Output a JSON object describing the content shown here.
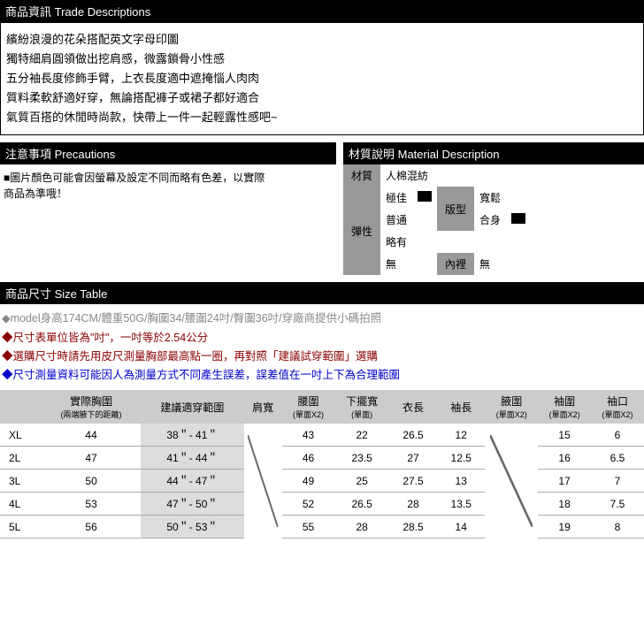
{
  "headers": {
    "trade": "商品資訊 Trade Descriptions",
    "precautions": "注意事項 Precautions",
    "material": "材質說明 Material Description",
    "size": "商品尺寸 Size Table"
  },
  "description": {
    "l1": "繽紛浪漫的花朵搭配英文字母印圖",
    "l2": "獨特細肩圓領做出挖肩感，微露鎖骨小性感",
    "l3": "五分袖長度修飾手臂，上衣長度適中遮掩惱人肉肉",
    "l4": "質料柔軟舒適好穿，無論搭配褲子或裙子都好適合",
    "l5": "氣質百搭的休閒時尚款，快帶上一件一起輕露性感吧~"
  },
  "precautions": {
    "l1": "■圖片顏色可能會因螢幕及設定不同而略有色差，以實際",
    "l2": "商品為準哦！"
  },
  "material": {
    "label_material": "材質",
    "value_material": "人棉混紡",
    "label_elastic": "彈性",
    "e1": "極佳",
    "e2": "普通",
    "e3": "略有",
    "e4": "無",
    "label_fit": "版型",
    "f1": "寬鬆",
    "f2": "合身",
    "label_lining": "內裡",
    "lining_value": "無"
  },
  "notes": {
    "n1": "◆model身高174CM/體重50G/胸圍34/腰圍24吋/臀圍36吋/穿廠商提供小碼拍照",
    "n2": "◆尺寸表單位皆為\"吋\"，一吋等於2.54公分",
    "n3": "◆選購尺寸時請先用皮尺測量胸部最高點一圈，再對照「建議試穿範圍」選購",
    "n4": "◆尺寸測量資料可能因人為測量方式不同產生誤差，誤差值在一吋上下為合理範圍"
  },
  "size_headers": {
    "blank": "",
    "bust": "實際胸圍",
    "bust_sub": "(兩端腋下的距離)",
    "range": "建議適穿範圍",
    "shoulder": "肩寬",
    "waist": "腰圍",
    "waist_sub": "(單面X2)",
    "hem": "下擺寬",
    "hem_sub": "(單面)",
    "length": "衣長",
    "sleeve": "袖長",
    "armhole": "腋圍",
    "armhole_sub": "(單面X2)",
    "cuff1": "袖圍",
    "cuff1_sub": "(單面X2)",
    "cuff2": "袖口",
    "cuff2_sub": "(單面X2)"
  },
  "sizes": {
    "r0": {
      "code": "XL",
      "bust": "44",
      "range": "38＂- 41＂",
      "waist": "43",
      "hem": "22",
      "len": "26.5",
      "sleeve": "12",
      "cuff1": "15",
      "cuff2": "6"
    },
    "r1": {
      "code": "2L",
      "bust": "47",
      "range": "41＂- 44＂",
      "waist": "46",
      "hem": "23.5",
      "len": "27",
      "sleeve": "12.5",
      "cuff1": "16",
      "cuff2": "6.5"
    },
    "r2": {
      "code": "3L",
      "bust": "50",
      "range": "44＂- 47＂",
      "waist": "49",
      "hem": "25",
      "len": "27.5",
      "sleeve": "13",
      "cuff1": "17",
      "cuff2": "7"
    },
    "r3": {
      "code": "4L",
      "bust": "53",
      "range": "47＂- 50＂",
      "waist": "52",
      "hem": "26.5",
      "len": "28",
      "sleeve": "13.5",
      "cuff1": "18",
      "cuff2": "7.5"
    },
    "r4": {
      "code": "5L",
      "bust": "56",
      "range": "50＂- 53＂",
      "waist": "55",
      "hem": "28",
      "len": "28.5",
      "sleeve": "14",
      "cuff1": "19",
      "cuff2": "8"
    }
  }
}
